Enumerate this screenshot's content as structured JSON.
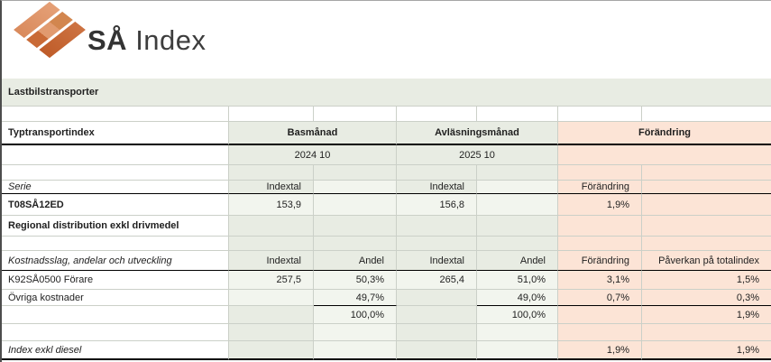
{
  "colors": {
    "green_header": "#e8ece3",
    "green_faint": "#f2f5ee",
    "peach": "#fce4d6",
    "gridline": "#cbd0c8",
    "text": "#1f1f1f",
    "brand_orange_dark": "#bf5c29",
    "brand_orange_mid": "#c96a36",
    "brand_orange_light": "#e19a6f"
  },
  "logo": {
    "brand_bold": "SÅ",
    "brand_light": " Index"
  },
  "section_title": "Lastbilstransporter",
  "table": {
    "title": "Typtransportindex",
    "groups": {
      "base_label": "Basmånad",
      "base_month": "2024 10",
      "read_label": "Avläsningsmånad",
      "read_month": "2025 10",
      "change_label": "Förändring"
    },
    "serie": {
      "section_label": "Serie",
      "base_col": "Indextal",
      "read_col": "Indextal",
      "change_col": "Förändring",
      "code": "T08SÅ12ED",
      "base_value": "153,9",
      "read_value": "156,8",
      "change_value": "1,9%",
      "description": "Regional distribution exkl drivmedel"
    },
    "cost": {
      "section_label": "Kostnadsslag, andelar och utveckling",
      "base_index_col": "Indextal",
      "base_share_col": "Andel",
      "read_index_col": "Indextal",
      "read_share_col": "Andel",
      "change_col": "Förändring",
      "impact_col": "Påverkan på totalindex",
      "rows": [
        {
          "name": "K92SÅ0500 Förare",
          "base_index": "257,5",
          "base_share": "50,3%",
          "read_index": "265,4",
          "read_share": "51,0%",
          "change": "3,1%",
          "impact": "1,5%"
        },
        {
          "name": "Övriga kostnader",
          "base_index": "",
          "base_share": "49,7%",
          "read_index": "",
          "read_share": "49,0%",
          "change": "0,7%",
          "impact": "0,3%"
        }
      ],
      "total": {
        "base_share": "100,0%",
        "read_share": "100,0%",
        "impact": "1,9%"
      }
    },
    "footer": {
      "label": "Index exkl diesel",
      "change": "1,9%",
      "impact": "1,9%"
    }
  }
}
